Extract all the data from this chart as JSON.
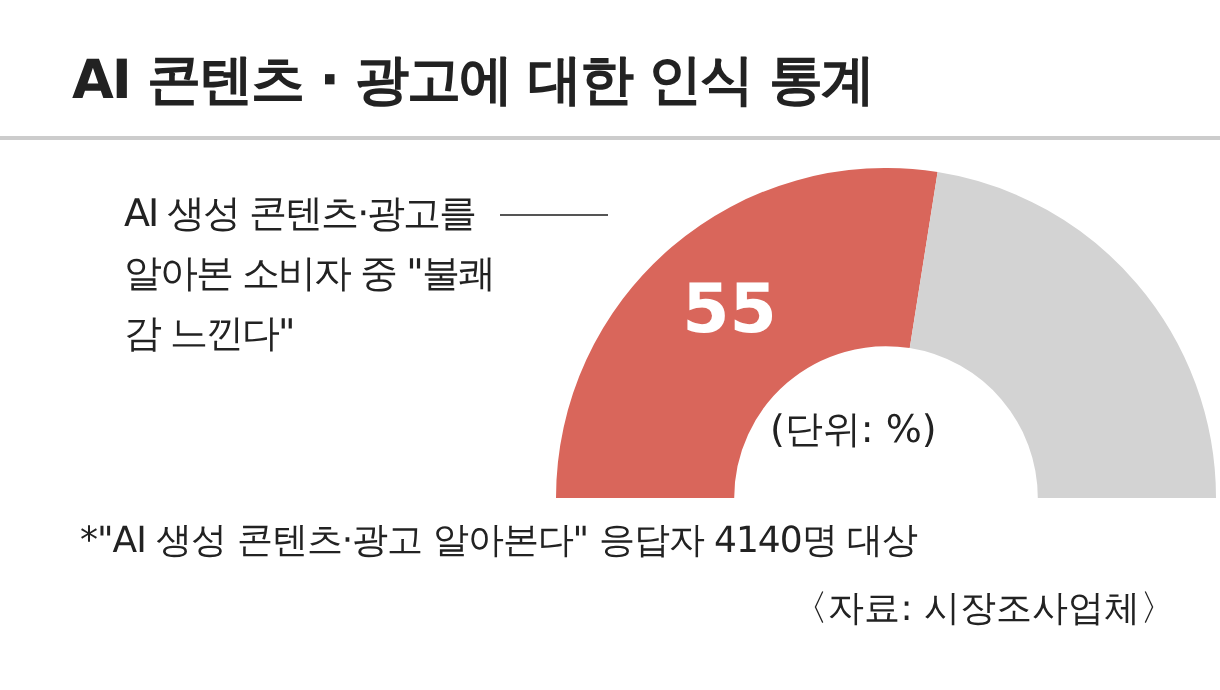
{
  "chart_data": {
    "type": "donut",
    "title": "AI 콘텐츠 · 광고에 대한 인식 통계",
    "categories": [
      "AI 생성 콘텐츠·광고를 알아본 소비자 중 \"불쾌감 느낀다\"",
      null
    ],
    "values": [
      55,
      45
    ],
    "colors": [
      "#d9665b",
      "#d3d3d3"
    ],
    "value_labels": [
      "55",
      null
    ],
    "legend": false,
    "annotations": [
      "(단위: %)",
      "*\"AI 생성 콘텐츠·광고 알아본다\" 응답자 4140명 대상",
      "〈자료: 시장조사업체〉"
    ]
  }
}
